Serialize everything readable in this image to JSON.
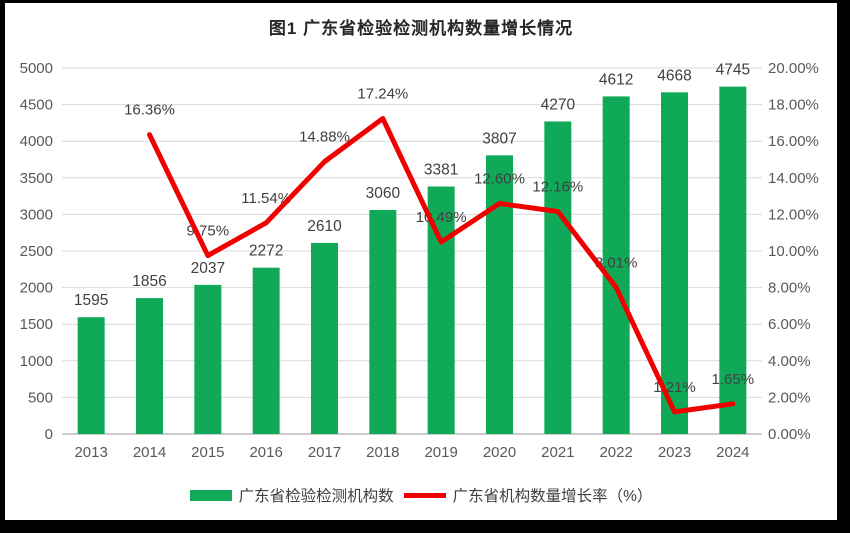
{
  "frame": {
    "background": "#ffffff",
    "border_color": "#000000"
  },
  "chart_data": {
    "type": "bar+line",
    "title": "图1 广东省检验检测机构数量增长情况",
    "categories": [
      "2013",
      "2014",
      "2015",
      "2016",
      "2017",
      "2018",
      "2019",
      "2020",
      "2021",
      "2022",
      "2023",
      "2024"
    ],
    "series": [
      {
        "name": "广东省检验检测机构数",
        "type": "bar",
        "axis": "left",
        "color": "#0fa958",
        "values": [
          1595,
          1856,
          2037,
          2272,
          2610,
          3060,
          3381,
          3807,
          4270,
          4612,
          4668,
          4745
        ],
        "value_labels": [
          "1595",
          "1856",
          "2037",
          "2272",
          "2610",
          "3060",
          "3381",
          "3807",
          "4270",
          "4612",
          "4668",
          "4745"
        ]
      },
      {
        "name": "广东省机构数量增长率（%）",
        "type": "line",
        "axis": "right",
        "color": "#f10000",
        "values": [
          null,
          16.36,
          9.75,
          11.54,
          14.88,
          17.24,
          10.49,
          12.6,
          12.16,
          8.01,
          1.21,
          1.65
        ],
        "point_labels": [
          null,
          "16.36%",
          "9.75%",
          "11.54%",
          "14.88%",
          "17.24%",
          "10.49%",
          "12.60%",
          "12.16%",
          "8.01%",
          "1.21%",
          "1.65%"
        ]
      }
    ],
    "left_axis": {
      "min": 0,
      "max": 5000,
      "step": 500,
      "tick_labels": [
        "0",
        "500",
        "1000",
        "1500",
        "2000",
        "2500",
        "3000",
        "3500",
        "4000",
        "4500",
        "5000"
      ]
    },
    "right_axis": {
      "min": 0,
      "max": 20,
      "step": 2,
      "tick_labels": [
        "0.00%",
        "2.00%",
        "4.00%",
        "6.00%",
        "8.00%",
        "10.00%",
        "12.00%",
        "14.00%",
        "16.00%",
        "18.00%",
        "20.00%"
      ]
    },
    "grid": true,
    "legend_position": "bottom",
    "style": {
      "grid_color": "#d9d9d9",
      "axis_line_color": "#bcbcbc",
      "tick_label_color": "#595959",
      "data_label_color": "#404040"
    }
  },
  "legend": {
    "items": [
      {
        "label": "广东省检验检测机构数",
        "type": "bar",
        "color": "#0fa958"
      },
      {
        "label": "广东省机构数量增长率（%）",
        "type": "line",
        "color": "#f10000"
      }
    ]
  }
}
